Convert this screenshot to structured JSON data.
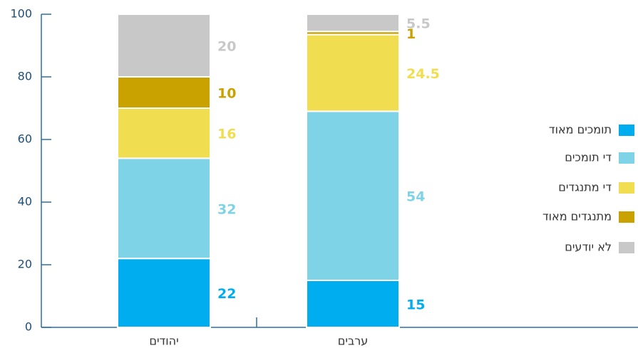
{
  "chart_data": {
    "type": "stacked_bar",
    "categories": [
      "יהודים",
      "ערבים"
    ],
    "series": [
      {
        "name": "תומכים מאוד",
        "color": "#00aeef",
        "values": [
          22,
          15
        ]
      },
      {
        "name": "די תומכים",
        "color": "#7fd3e6",
        "values": [
          32,
          54
        ]
      },
      {
        "name": "די מתנגדים",
        "color": "#f0de50",
        "values": [
          16,
          24.5
        ]
      },
      {
        "name": "מתנגדים מאוד",
        "color": "#c9a200",
        "values": [
          10,
          1
        ]
      },
      {
        "name": "לא יודעים",
        "color": "#c8c8c8",
        "values": [
          20,
          5.5
        ]
      }
    ],
    "ylim": [
      0,
      100
    ],
    "yticks": [
      0,
      20,
      40,
      60,
      80,
      100
    ],
    "legend": "right"
  }
}
